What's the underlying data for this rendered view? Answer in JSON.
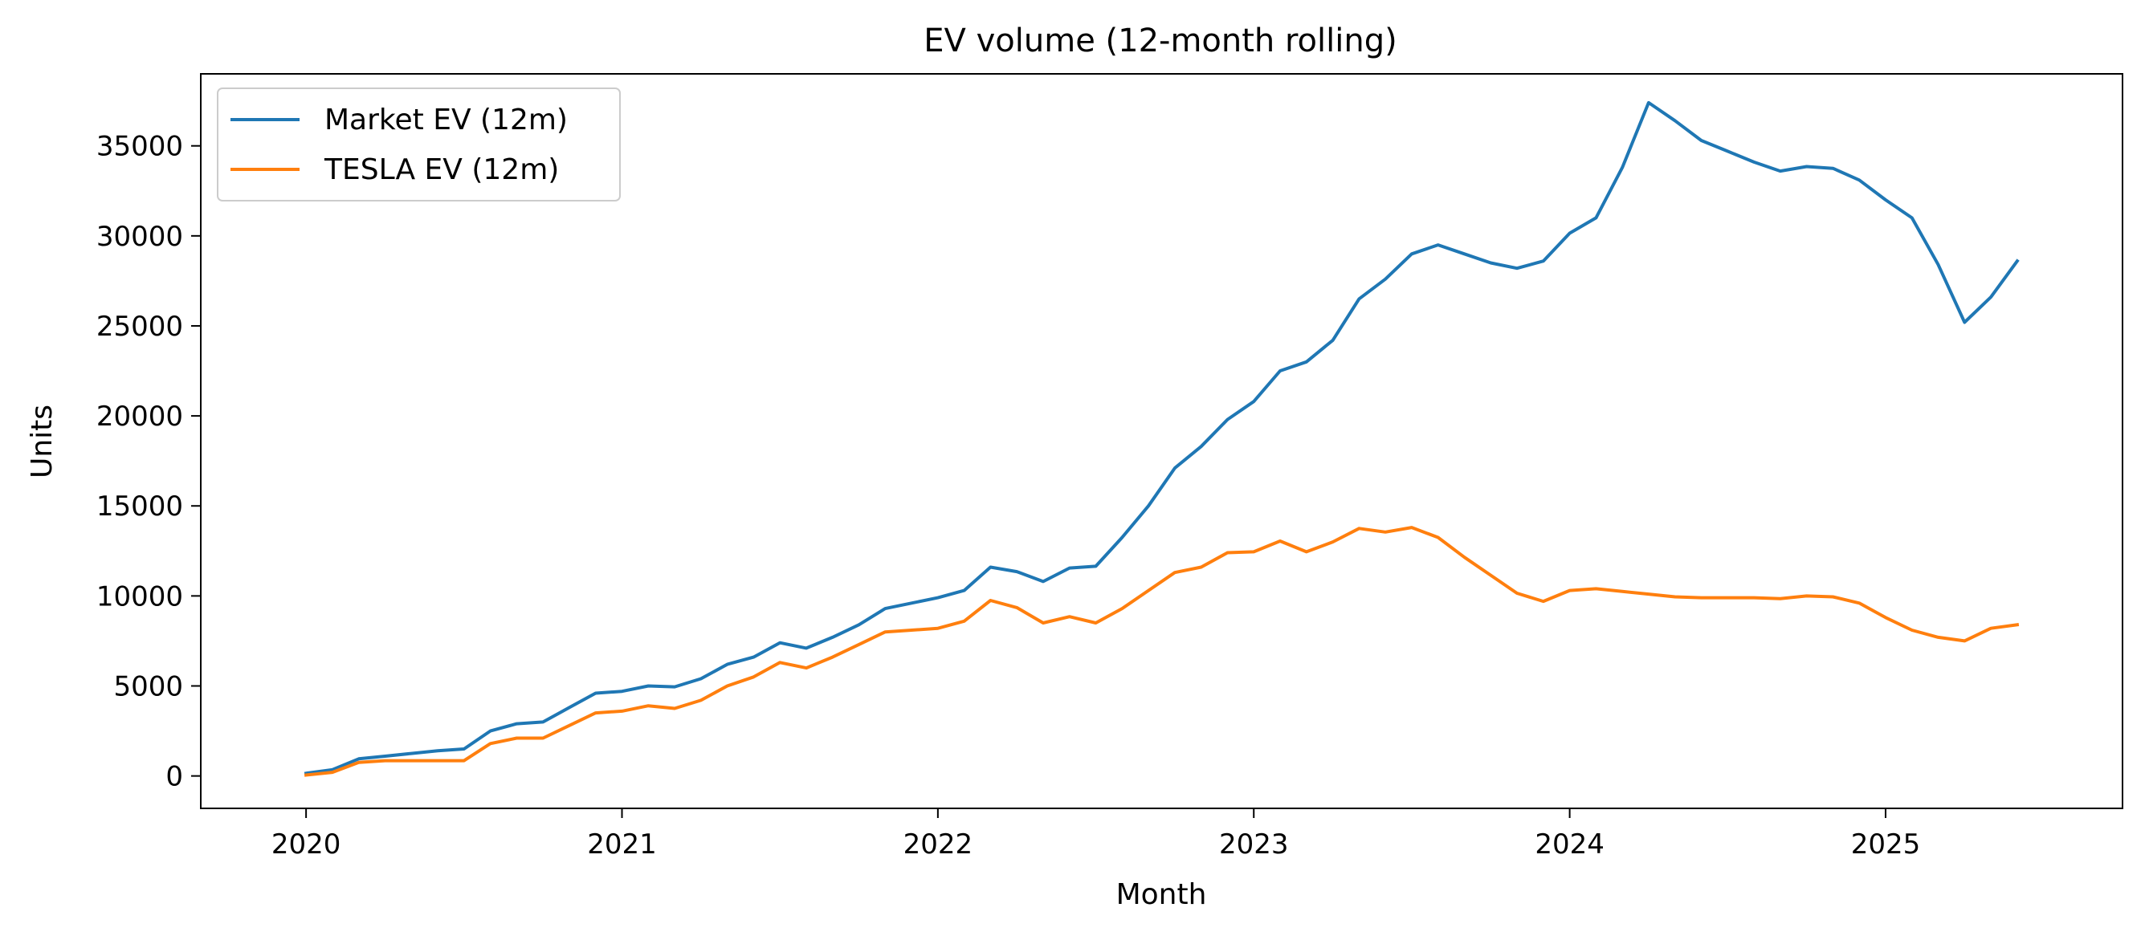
{
  "chart_data": {
    "type": "line",
    "title": "EV volume (12-month rolling)",
    "xlabel": "Month",
    "ylabel": "Units",
    "x_ticks": [
      "2020",
      "2021",
      "2022",
      "2023",
      "2024",
      "2025"
    ],
    "y_ticks": [
      "0",
      "5000",
      "10000",
      "15000",
      "20000",
      "25000",
      "30000",
      "35000"
    ],
    "xlim": [
      "2019-09",
      "2025-10"
    ],
    "ylim": [
      -1800,
      39000
    ],
    "grid": false,
    "legend_position": "top-left",
    "x": [
      "2020-01",
      "2020-02",
      "2020-03",
      "2020-04",
      "2020-05",
      "2020-06",
      "2020-07",
      "2020-08",
      "2020-09",
      "2020-10",
      "2020-11",
      "2020-12",
      "2021-01",
      "2021-02",
      "2021-03",
      "2021-04",
      "2021-05",
      "2021-06",
      "2021-07",
      "2021-08",
      "2021-09",
      "2021-10",
      "2021-11",
      "2021-12",
      "2022-01",
      "2022-02",
      "2022-03",
      "2022-04",
      "2022-05",
      "2022-06",
      "2022-07",
      "2022-08",
      "2022-09",
      "2022-10",
      "2022-11",
      "2022-12",
      "2023-01",
      "2023-02",
      "2023-03",
      "2023-04",
      "2023-05",
      "2023-06",
      "2023-07",
      "2023-08",
      "2023-09",
      "2023-10",
      "2023-11",
      "2023-12",
      "2024-01",
      "2024-02",
      "2024-03",
      "2024-04",
      "2024-05",
      "2024-06",
      "2024-07",
      "2024-08",
      "2024-09",
      "2024-10",
      "2024-11",
      "2024-12",
      "2025-01",
      "2025-02",
      "2025-03",
      "2025-04",
      "2025-05",
      "2025-06"
    ],
    "series": [
      {
        "name": "Market EV (12m)",
        "color": "#1f77b4",
        "values": [
          150,
          350,
          950,
          1100,
          1250,
          1400,
          1500,
          2500,
          2900,
          3000,
          3800,
          4600,
          4700,
          5000,
          4950,
          5400,
          6200,
          6600,
          7400,
          7100,
          7700,
          8400,
          9300,
          9600,
          9900,
          10300,
          11600,
          11350,
          10800,
          11550,
          11650,
          13250,
          15000,
          17100,
          18300,
          19800,
          20800,
          22500,
          23000,
          24200,
          26500,
          27600,
          29000,
          29500,
          29000,
          28500,
          28200,
          28600,
          30150,
          31000,
          33800,
          37400,
          36400,
          35300,
          34700,
          34100,
          33600,
          33850,
          33750,
          33100,
          32000,
          31000,
          28400,
          25200,
          26600,
          28600
        ]
      },
      {
        "name": "TESLA EV (12m)",
        "color": "#ff7f0e",
        "values": [
          50,
          200,
          750,
          850,
          850,
          850,
          850,
          1800,
          2100,
          2100,
          2800,
          3500,
          3600,
          3900,
          3750,
          4200,
          5000,
          5500,
          6300,
          6000,
          6600,
          7300,
          8000,
          8100,
          8200,
          8600,
          9750,
          9350,
          8500,
          8850,
          8500,
          9300,
          10300,
          11300,
          11600,
          12400,
          12450,
          13050,
          12450,
          13000,
          13750,
          13550,
          13800,
          13250,
          12150,
          11150,
          10150,
          9700,
          10300,
          10400,
          10250,
          10100,
          9950,
          9900,
          9900,
          9900,
          9850,
          10000,
          9950,
          9600,
          8800,
          8100,
          7700,
          7500,
          8200,
          8400
        ]
      }
    ]
  }
}
